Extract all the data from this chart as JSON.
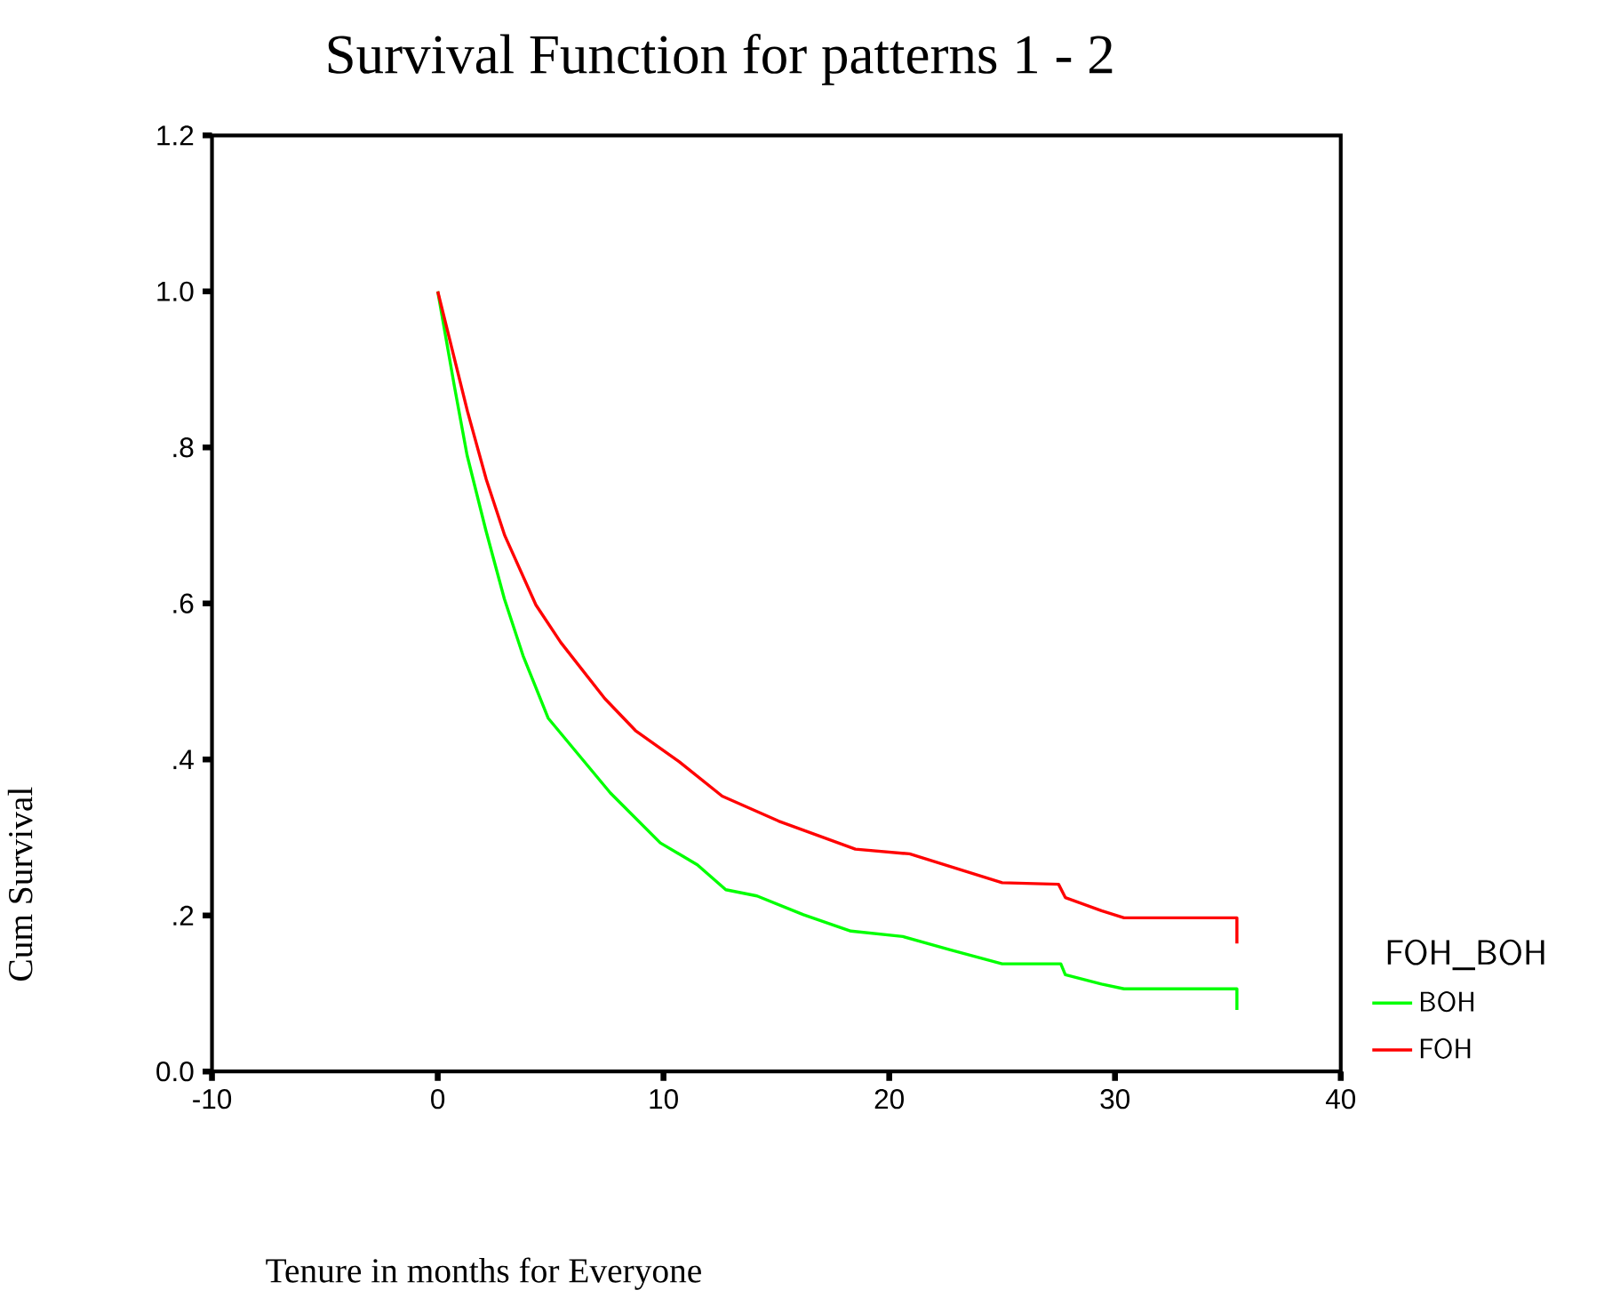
{
  "chart_data": {
    "type": "line",
    "title": "Survival Function for patterns 1 - 2",
    "xlabel": "Tenure in months for Everyone",
    "ylabel": "Cum Survival",
    "legend_title": "FOH_BOH",
    "xlim": [
      -10,
      40
    ],
    "xticks": [
      -10,
      0,
      10,
      20,
      30,
      40
    ],
    "ylim": [
      0,
      1.2
    ],
    "yticks": [
      {
        "value": 0,
        "label": "0.0"
      },
      {
        "value": 0.2,
        "label": ".2"
      },
      {
        "value": 0.4,
        "label": ".4"
      },
      {
        "value": 0.6,
        "label": ".6"
      },
      {
        "value": 0.8,
        "label": ".8"
      },
      {
        "value": 1.0,
        "label": "1.0"
      },
      {
        "value": 1.2,
        "label": "1.2"
      }
    ],
    "grid": false,
    "legend": "right",
    "marker": "none",
    "line_style": "solid",
    "series": [
      {
        "name": "BOH",
        "color": "#00ff00",
        "x": [
          0,
          0.74,
          1.3,
          2.13,
          2.95,
          3.78,
          4.89,
          6.27,
          7.65,
          9.86,
          11.5,
          12.76,
          14.14,
          16.2,
          18.3,
          20.6,
          22.7,
          25.0,
          27.6,
          27.8,
          29.4,
          30.4,
          35.4,
          35.4
        ],
        "values": [
          1.0,
          0.878,
          0.79,
          0.694,
          0.606,
          0.533,
          0.453,
          0.405,
          0.357,
          0.293,
          0.265,
          0.233,
          0.225,
          0.201,
          0.18,
          0.173,
          0.156,
          0.138,
          0.138,
          0.124,
          0.112,
          0.106,
          0.106,
          0.079
        ]
      },
      {
        "name": "FOH",
        "color": "#ff0000",
        "x": [
          0,
          1.32,
          2.15,
          2.97,
          4.35,
          5.45,
          7.4,
          8.76,
          10.7,
          12.6,
          15.1,
          18.5,
          20.9,
          25.0,
          27.5,
          27.8,
          29.4,
          30.4,
          35.4,
          35.4
        ],
        "values": [
          1.0,
          0.846,
          0.759,
          0.687,
          0.598,
          0.55,
          0.478,
          0.437,
          0.397,
          0.353,
          0.321,
          0.285,
          0.279,
          0.242,
          0.24,
          0.223,
          0.206,
          0.197,
          0.197,
          0.164
        ]
      }
    ]
  }
}
